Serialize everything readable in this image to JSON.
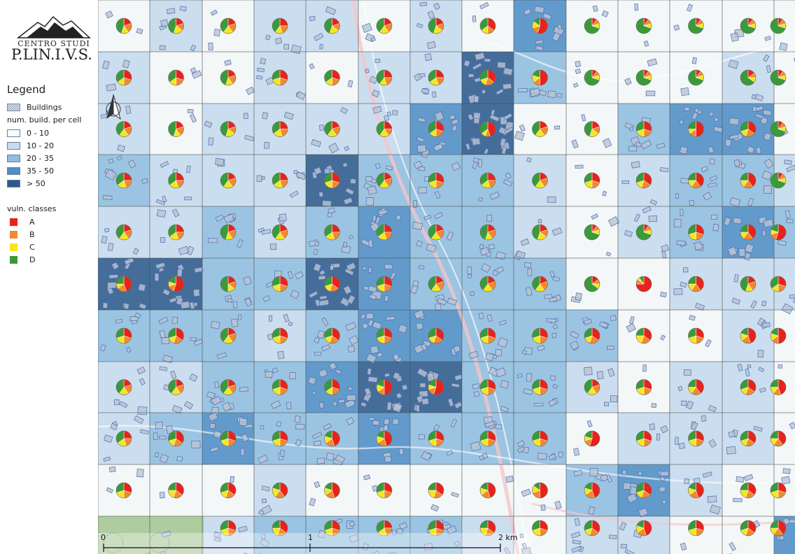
{
  "logo": {
    "line1": "CENTRO STUDI",
    "line2": "P.LIN.I.V.S."
  },
  "legend": {
    "title": "Legend",
    "buildings_label": "Buildings",
    "density_title": "num. build. per cell",
    "density_classes": [
      {
        "label": "0 - 10",
        "color": "#f7fbff"
      },
      {
        "label": "10 - 20",
        "color": "#c6dbef"
      },
      {
        "label": "20 - 35",
        "color": "#8fbde0"
      },
      {
        "label": "35 - 50",
        "color": "#4f8ec6"
      },
      {
        "label": "> 50",
        "color": "#2d5a8e"
      }
    ],
    "vuln_title": "vuln. classes",
    "vuln_classes": [
      {
        "label": "A",
        "color": "#e8231a"
      },
      {
        "label": "B",
        "color": "#f08a2c"
      },
      {
        "label": "C",
        "color": "#f5e71c"
      },
      {
        "label": "D",
        "color": "#3a9a3a"
      }
    ]
  },
  "scale_bar": {
    "labels": [
      "0",
      "1",
      "2 km"
    ]
  },
  "grid": {
    "rows": 11,
    "cols": 14,
    "density_class_per_cell": [
      [
        0,
        1,
        0,
        1,
        1,
        0,
        1,
        0,
        3,
        0,
        0,
        0,
        0,
        0
      ],
      [
        1,
        0,
        0,
        1,
        0,
        1,
        1,
        4,
        2,
        0,
        0,
        0,
        1,
        0
      ],
      [
        1,
        0,
        1,
        1,
        1,
        1,
        3,
        4,
        0,
        0,
        2,
        3,
        3,
        0
      ],
      [
        2,
        1,
        1,
        1,
        4,
        2,
        2,
        2,
        1,
        0,
        1,
        2,
        2,
        1
      ],
      [
        1,
        1,
        2,
        1,
        2,
        3,
        2,
        2,
        1,
        0,
        1,
        2,
        3,
        2
      ],
      [
        4,
        4,
        2,
        2,
        4,
        3,
        2,
        2,
        2,
        0,
        0,
        1,
        1,
        1
      ],
      [
        2,
        2,
        2,
        1,
        2,
        3,
        3,
        2,
        2,
        2,
        0,
        0,
        1,
        0
      ],
      [
        1,
        1,
        2,
        2,
        3,
        4,
        4,
        2,
        2,
        1,
        0,
        1,
        1,
        0
      ],
      [
        1,
        2,
        3,
        2,
        2,
        3,
        2,
        2,
        2,
        0,
        1,
        1,
        1,
        0
      ],
      [
        0,
        0,
        0,
        1,
        0,
        0,
        0,
        0,
        0,
        2,
        3,
        1,
        0,
        0
      ],
      [
        0,
        0,
        1,
        2,
        2,
        2,
        2,
        1,
        0,
        1,
        1,
        0,
        0,
        3
      ]
    ],
    "vulnerability_shares_per_cell": [
      [
        [
          0.2,
          0.2,
          0.15,
          0.45
        ],
        [
          0.2,
          0.15,
          0.2,
          0.45
        ],
        [
          0.2,
          0.2,
          0.2,
          0.4
        ],
        [
          0.25,
          0.2,
          0.15,
          0.4
        ],
        [
          0.2,
          0.15,
          0.2,
          0.45
        ],
        [
          0.2,
          0.2,
          0.2,
          0.4
        ],
        [
          0.2,
          0.15,
          0.2,
          0.45
        ],
        [
          0.35,
          0.15,
          0.15,
          0.35
        ],
        [
          0.55,
          0.15,
          0.15,
          0.15
        ],
        [
          0.1,
          0.1,
          0.1,
          0.7
        ],
        [
          0.1,
          0.1,
          0.1,
          0.7
        ],
        [
          0.1,
          0.1,
          0.1,
          0.7
        ],
        [
          0.1,
          0.1,
          0.1,
          0.7
        ],
        [
          0.1,
          0.1,
          0.1,
          0.7
        ]
      ],
      [
        [
          0.3,
          0.2,
          0.15,
          0.35
        ],
        [
          0.3,
          0.2,
          0.15,
          0.35
        ],
        [
          0.2,
          0.2,
          0.15,
          0.45
        ],
        [
          0.3,
          0.2,
          0.2,
          0.3
        ],
        [
          0.3,
          0.2,
          0.15,
          0.35
        ],
        [
          0.25,
          0.2,
          0.15,
          0.4
        ],
        [
          0.25,
          0.2,
          0.2,
          0.35
        ],
        [
          0.35,
          0.2,
          0.15,
          0.3
        ],
        [
          0.5,
          0.15,
          0.15,
          0.2
        ],
        [
          0.1,
          0.1,
          0.1,
          0.7
        ],
        [
          0.1,
          0.1,
          0.1,
          0.7
        ],
        [
          0.1,
          0.1,
          0.1,
          0.7
        ],
        [
          0.15,
          0.1,
          0.1,
          0.65
        ],
        [
          0.1,
          0.1,
          0.1,
          0.7
        ]
      ],
      [
        [
          0.2,
          0.2,
          0.2,
          0.4
        ],
        [
          0.2,
          0.2,
          0.15,
          0.45
        ],
        [
          0.2,
          0.15,
          0.2,
          0.45
        ],
        [
          0.25,
          0.2,
          0.2,
          0.35
        ],
        [
          0.2,
          0.2,
          0.2,
          0.4
        ],
        [
          0.25,
          0.15,
          0.2,
          0.4
        ],
        [
          0.3,
          0.2,
          0.15,
          0.35
        ],
        [
          0.45,
          0.1,
          0.1,
          0.35
        ],
        [
          0.2,
          0.2,
          0.2,
          0.4
        ],
        [
          0.2,
          0.15,
          0.2,
          0.45
        ],
        [
          0.3,
          0.2,
          0.2,
          0.3
        ],
        [
          0.5,
          0.15,
          0.1,
          0.25
        ],
        [
          0.35,
          0.2,
          0.15,
          0.3
        ],
        [
          0.1,
          0.1,
          0.1,
          0.7
        ]
      ],
      [
        [
          0.25,
          0.2,
          0.2,
          0.35
        ],
        [
          0.25,
          0.2,
          0.2,
          0.35
        ],
        [
          0.2,
          0.2,
          0.2,
          0.4
        ],
        [
          0.25,
          0.2,
          0.2,
          0.35
        ],
        [
          0.3,
          0.2,
          0.2,
          0.3
        ],
        [
          0.2,
          0.2,
          0.2,
          0.4
        ],
        [
          0.3,
          0.2,
          0.2,
          0.3
        ],
        [
          0.25,
          0.2,
          0.2,
          0.35
        ],
        [
          0.2,
          0.2,
          0.2,
          0.4
        ],
        [
          0.3,
          0.2,
          0.2,
          0.3
        ],
        [
          0.35,
          0.2,
          0.15,
          0.3
        ],
        [
          0.4,
          0.2,
          0.15,
          0.25
        ],
        [
          0.4,
          0.2,
          0.15,
          0.25
        ],
        [
          0.1,
          0.1,
          0.1,
          0.7
        ]
      ],
      [
        [
          0.2,
          0.2,
          0.2,
          0.4
        ],
        [
          0.25,
          0.2,
          0.2,
          0.35
        ],
        [
          0.2,
          0.2,
          0.15,
          0.45
        ],
        [
          0.2,
          0.2,
          0.2,
          0.4
        ],
        [
          0.25,
          0.2,
          0.2,
          0.35
        ],
        [
          0.25,
          0.2,
          0.2,
          0.35
        ],
        [
          0.2,
          0.2,
          0.2,
          0.4
        ],
        [
          0.2,
          0.2,
          0.15,
          0.45
        ],
        [
          0.2,
          0.15,
          0.2,
          0.45
        ],
        [
          0.1,
          0.1,
          0.1,
          0.7
        ],
        [
          0.1,
          0.1,
          0.1,
          0.7
        ],
        [
          0.3,
          0.2,
          0.2,
          0.3
        ],
        [
          0.4,
          0.2,
          0.15,
          0.25
        ],
        [
          0.55,
          0.15,
          0.1,
          0.2
        ]
      ],
      [
        [
          0.45,
          0.2,
          0.1,
          0.25
        ],
        [
          0.55,
          0.15,
          0.1,
          0.2
        ],
        [
          0.2,
          0.15,
          0.15,
          0.5
        ],
        [
          0.3,
          0.2,
          0.2,
          0.3
        ],
        [
          0.35,
          0.2,
          0.15,
          0.3
        ],
        [
          0.3,
          0.2,
          0.2,
          0.3
        ],
        [
          0.2,
          0.2,
          0.2,
          0.4
        ],
        [
          0.2,
          0.2,
          0.2,
          0.4
        ],
        [
          0.2,
          0.2,
          0.2,
          0.4
        ],
        [
          0.15,
          0.1,
          0.1,
          0.65
        ],
        [
          0.75,
          0.1,
          0.05,
          0.1
        ],
        [
          0.4,
          0.2,
          0.15,
          0.25
        ],
        [
          0.2,
          0.2,
          0.15,
          0.45
        ],
        [
          0.3,
          0.2,
          0.15,
          0.35
        ]
      ],
      [
        [
          0.3,
          0.2,
          0.2,
          0.3
        ],
        [
          0.35,
          0.2,
          0.15,
          0.3
        ],
        [
          0.2,
          0.2,
          0.2,
          0.4
        ],
        [
          0.3,
          0.2,
          0.2,
          0.3
        ],
        [
          0.35,
          0.2,
          0.15,
          0.3
        ],
        [
          0.3,
          0.2,
          0.2,
          0.3
        ],
        [
          0.35,
          0.2,
          0.15,
          0.3
        ],
        [
          0.3,
          0.2,
          0.2,
          0.3
        ],
        [
          0.3,
          0.2,
          0.2,
          0.3
        ],
        [
          0.35,
          0.2,
          0.15,
          0.3
        ],
        [
          0.35,
          0.2,
          0.2,
          0.25
        ],
        [
          0.3,
          0.2,
          0.2,
          0.3
        ],
        [
          0.45,
          0.2,
          0.15,
          0.2
        ],
        [
          0.5,
          0.15,
          0.15,
          0.2
        ]
      ],
      [
        [
          0.2,
          0.2,
          0.2,
          0.4
        ],
        [
          0.2,
          0.2,
          0.2,
          0.4
        ],
        [
          0.2,
          0.2,
          0.2,
          0.4
        ],
        [
          0.3,
          0.2,
          0.2,
          0.3
        ],
        [
          0.3,
          0.2,
          0.15,
          0.35
        ],
        [
          0.5,
          0.15,
          0.15,
          0.2
        ],
        [
          0.55,
          0.15,
          0.1,
          0.2
        ],
        [
          0.3,
          0.2,
          0.2,
          0.3
        ],
        [
          0.3,
          0.2,
          0.2,
          0.3
        ],
        [
          0.2,
          0.2,
          0.2,
          0.4
        ],
        [
          0.3,
          0.2,
          0.2,
          0.3
        ],
        [
          0.4,
          0.2,
          0.15,
          0.25
        ],
        [
          0.35,
          0.2,
          0.15,
          0.3
        ],
        [
          0.45,
          0.15,
          0.15,
          0.25
        ]
      ],
      [
        [
          0.25,
          0.2,
          0.2,
          0.35
        ],
        [
          0.35,
          0.2,
          0.15,
          0.3
        ],
        [
          0.3,
          0.2,
          0.2,
          0.3
        ],
        [
          0.3,
          0.2,
          0.2,
          0.3
        ],
        [
          0.45,
          0.2,
          0.15,
          0.2
        ],
        [
          0.45,
          0.2,
          0.15,
          0.2
        ],
        [
          0.3,
          0.2,
          0.2,
          0.3
        ],
        [
          0.3,
          0.2,
          0.2,
          0.3
        ],
        [
          0.3,
          0.2,
          0.2,
          0.3
        ],
        [
          0.55,
          0.15,
          0.1,
          0.2
        ],
        [
          0.3,
          0.2,
          0.2,
          0.3
        ],
        [
          0.3,
          0.2,
          0.2,
          0.3
        ],
        [
          0.35,
          0.2,
          0.15,
          0.3
        ],
        [
          0.4,
          0.2,
          0.15,
          0.25
        ]
      ],
      [
        [
          0.3,
          0.2,
          0.2,
          0.3
        ],
        [
          0.35,
          0.2,
          0.2,
          0.25
        ],
        [
          0.35,
          0.2,
          0.15,
          0.3
        ],
        [
          0.4,
          0.2,
          0.2,
          0.2
        ],
        [
          0.45,
          0.2,
          0.15,
          0.2
        ],
        [
          0.3,
          0.2,
          0.2,
          0.3
        ],
        [
          0.35,
          0.2,
          0.2,
          0.25
        ],
        [
          0.45,
          0.2,
          0.15,
          0.2
        ],
        [
          0.5,
          0.2,
          0.15,
          0.15
        ],
        [
          0.45,
          0.2,
          0.15,
          0.2
        ],
        [
          0.35,
          0.2,
          0.15,
          0.3
        ],
        [
          0.45,
          0.2,
          0.15,
          0.2
        ],
        [
          0.35,
          0.2,
          0.2,
          0.25
        ],
        [
          0.3,
          0.2,
          0.2,
          0.3
        ]
      ],
      [
        [
          0,
          0,
          0,
          0
        ],
        [
          0,
          0,
          0,
          0
        ],
        [
          0.3,
          0.2,
          0.2,
          0.3
        ],
        [
          0.35,
          0.2,
          0.2,
          0.25
        ],
        [
          0.3,
          0.2,
          0.2,
          0.3
        ],
        [
          0.25,
          0.2,
          0.2,
          0.35
        ],
        [
          0.3,
          0.2,
          0.2,
          0.3
        ],
        [
          0.35,
          0.2,
          0.2,
          0.25
        ],
        [
          0.3,
          0.2,
          0.2,
          0.3
        ],
        [
          0.35,
          0.2,
          0.15,
          0.3
        ],
        [
          0.45,
          0.2,
          0.15,
          0.2
        ],
        [
          0.3,
          0.2,
          0.2,
          0.3
        ],
        [
          0.35,
          0.2,
          0.15,
          0.3
        ],
        [
          0.4,
          0.2,
          0.15,
          0.25
        ]
      ]
    ]
  }
}
